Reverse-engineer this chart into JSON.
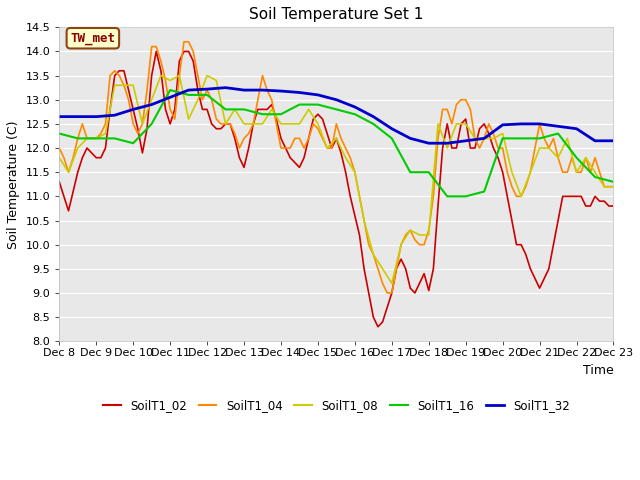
{
  "title": "Soil Temperature Set 1",
  "xlabel": "Time",
  "ylabel": "Soil Temperature (C)",
  "ylim": [
    8.0,
    14.5
  ],
  "xlim": [
    0,
    15
  ],
  "fig_bg": "#ffffff",
  "plot_bg": "#e8e8e8",
  "annotation_text": "TW_met",
  "annotation_bg": "#ffffcc",
  "annotation_border": "#8B4513",
  "annotation_text_color": "#8B0000",
  "xtick_labels": [
    "Dec 8",
    "Dec 9",
    "Dec 10",
    "Dec 11",
    "Dec 12",
    "Dec 13",
    "Dec 14",
    "Dec 15",
    "Dec 16",
    "Dec 17",
    "Dec 18",
    "Dec 19",
    "Dec 20",
    "Dec 21",
    "Dec 22",
    "Dec 23"
  ],
  "ytick_values": [
    8.0,
    8.5,
    9.0,
    9.5,
    10.0,
    10.5,
    11.0,
    11.5,
    12.0,
    12.5,
    13.0,
    13.5,
    14.0,
    14.5
  ],
  "grid_color": "#ffffff",
  "series": {
    "SoilT1_02": {
      "color": "#cc0000",
      "linewidth": 1.2,
      "x": [
        0,
        0.125,
        0.25,
        0.375,
        0.5,
        0.625,
        0.75,
        0.875,
        1.0,
        1.125,
        1.25,
        1.375,
        1.5,
        1.625,
        1.75,
        1.875,
        2.0,
        2.125,
        2.25,
        2.375,
        2.5,
        2.625,
        2.75,
        2.875,
        3.0,
        3.125,
        3.25,
        3.375,
        3.5,
        3.625,
        3.75,
        3.875,
        4.0,
        4.125,
        4.25,
        4.375,
        4.5,
        4.625,
        4.75,
        4.875,
        5.0,
        5.125,
        5.25,
        5.375,
        5.5,
        5.625,
        5.75,
        5.875,
        6.0,
        6.125,
        6.25,
        6.375,
        6.5,
        6.625,
        6.75,
        6.875,
        7.0,
        7.125,
        7.25,
        7.375,
        7.5,
        7.625,
        7.75,
        7.875,
        8.0,
        8.125,
        8.25,
        8.375,
        8.5,
        8.625,
        8.75,
        8.875,
        9.0,
        9.125,
        9.25,
        9.375,
        9.5,
        9.625,
        9.75,
        9.875,
        10.0,
        10.125,
        10.25,
        10.375,
        10.5,
        10.625,
        10.75,
        10.875,
        11.0,
        11.125,
        11.25,
        11.375,
        11.5,
        11.625,
        11.75,
        11.875,
        12.0,
        12.125,
        12.25,
        12.375,
        12.5,
        12.625,
        12.75,
        12.875,
        13.0,
        13.125,
        13.25,
        13.375,
        13.5,
        13.625,
        13.75,
        13.875,
        14.0,
        14.125,
        14.25,
        14.375,
        14.5,
        14.625,
        14.75,
        14.875,
        15.0
      ],
      "y": [
        11.3,
        11.0,
        10.7,
        11.1,
        11.5,
        11.8,
        12.0,
        11.9,
        11.8,
        11.8,
        12.0,
        12.8,
        13.5,
        13.6,
        13.6,
        13.2,
        12.8,
        12.4,
        11.9,
        12.4,
        13.5,
        14.0,
        13.6,
        12.8,
        12.5,
        12.8,
        13.8,
        14.0,
        14.0,
        13.8,
        13.2,
        12.8,
        12.8,
        12.5,
        12.4,
        12.4,
        12.5,
        12.5,
        12.2,
        11.8,
        11.6,
        12.0,
        12.5,
        12.8,
        12.8,
        12.8,
        12.9,
        12.6,
        12.2,
        12.0,
        11.8,
        11.7,
        11.6,
        11.8,
        12.2,
        12.6,
        12.7,
        12.6,
        12.3,
        12.0,
        12.2,
        11.9,
        11.5,
        11.0,
        10.6,
        10.2,
        9.5,
        9.0,
        8.5,
        8.3,
        8.4,
        8.7,
        9.0,
        9.5,
        9.7,
        9.5,
        9.1,
        9.0,
        9.2,
        9.4,
        9.05,
        9.5,
        10.8,
        12.0,
        12.5,
        12.0,
        12.0,
        12.5,
        12.6,
        12.0,
        12.0,
        12.4,
        12.5,
        12.3,
        12.0,
        11.8,
        11.5,
        11.0,
        10.5,
        10.0,
        10.0,
        9.8,
        9.5,
        9.3,
        9.1,
        9.3,
        9.5,
        10.0,
        10.5,
        11.0,
        11.0,
        11.0,
        11.0,
        11.0,
        10.8,
        10.8,
        11.0,
        10.9,
        10.9,
        10.8,
        10.8
      ]
    },
    "SoilT1_04": {
      "color": "#ff8800",
      "linewidth": 1.2,
      "x": [
        0,
        0.125,
        0.25,
        0.375,
        0.5,
        0.625,
        0.75,
        0.875,
        1.0,
        1.125,
        1.25,
        1.375,
        1.5,
        1.625,
        1.75,
        1.875,
        2.0,
        2.125,
        2.25,
        2.375,
        2.5,
        2.625,
        2.75,
        2.875,
        3.0,
        3.125,
        3.25,
        3.375,
        3.5,
        3.625,
        3.75,
        3.875,
        4.0,
        4.125,
        4.25,
        4.375,
        4.5,
        4.625,
        4.75,
        4.875,
        5.0,
        5.125,
        5.25,
        5.375,
        5.5,
        5.625,
        5.75,
        5.875,
        6.0,
        6.125,
        6.25,
        6.375,
        6.5,
        6.625,
        6.75,
        6.875,
        7.0,
        7.125,
        7.25,
        7.375,
        7.5,
        7.625,
        7.75,
        7.875,
        8.0,
        8.125,
        8.25,
        8.375,
        8.5,
        8.625,
        8.75,
        8.875,
        9.0,
        9.125,
        9.25,
        9.375,
        9.5,
        9.625,
        9.75,
        9.875,
        10.0,
        10.125,
        10.25,
        10.375,
        10.5,
        10.625,
        10.75,
        10.875,
        11.0,
        11.125,
        11.25,
        11.375,
        11.5,
        11.625,
        11.75,
        11.875,
        12.0,
        12.125,
        12.25,
        12.375,
        12.5,
        12.625,
        12.75,
        12.875,
        13.0,
        13.125,
        13.25,
        13.375,
        13.5,
        13.625,
        13.75,
        13.875,
        14.0,
        14.125,
        14.25,
        14.375,
        14.5,
        14.625,
        14.75,
        14.875,
        15.0
      ],
      "y": [
        12.0,
        11.8,
        11.5,
        11.8,
        12.2,
        12.5,
        12.2,
        12.2,
        12.2,
        12.3,
        12.5,
        13.5,
        13.6,
        13.5,
        13.3,
        13.0,
        12.5,
        12.3,
        12.5,
        13.2,
        14.1,
        14.1,
        13.8,
        13.4,
        12.8,
        12.6,
        13.5,
        14.2,
        14.2,
        14.0,
        13.5,
        13.0,
        13.2,
        13.0,
        12.6,
        12.5,
        12.5,
        12.5,
        12.3,
        12.0,
        12.2,
        12.3,
        12.5,
        13.0,
        13.5,
        13.2,
        13.0,
        12.5,
        12.0,
        12.0,
        12.0,
        12.2,
        12.2,
        12.0,
        12.2,
        12.5,
        12.4,
        12.2,
        12.0,
        12.0,
        12.5,
        12.2,
        12.0,
        11.8,
        11.5,
        11.0,
        10.5,
        10.0,
        9.8,
        9.5,
        9.2,
        9.0,
        9.0,
        9.5,
        10.0,
        10.2,
        10.3,
        10.1,
        10.0,
        10.0,
        10.3,
        11.0,
        12.2,
        12.8,
        12.8,
        12.5,
        12.9,
        13.0,
        13.0,
        12.8,
        12.2,
        12.0,
        12.2,
        12.5,
        12.3,
        12.0,
        12.0,
        11.5,
        11.2,
        11.0,
        11.0,
        11.2,
        11.5,
        12.0,
        12.5,
        12.2,
        12.0,
        12.2,
        11.8,
        11.5,
        11.5,
        11.8,
        11.5,
        11.5,
        11.8,
        11.5,
        11.8,
        11.5,
        11.2,
        11.2,
        11.2
      ]
    },
    "SoilT1_08": {
      "color": "#cccc00",
      "linewidth": 1.2,
      "x": [
        0,
        0.25,
        0.5,
        0.75,
        1.0,
        1.25,
        1.5,
        1.75,
        2.0,
        2.25,
        2.5,
        2.75,
        3.0,
        3.25,
        3.5,
        3.75,
        4.0,
        4.25,
        4.5,
        4.75,
        5.0,
        5.25,
        5.5,
        5.75,
        6.0,
        6.25,
        6.5,
        6.75,
        7.0,
        7.25,
        7.5,
        7.75,
        8.0,
        8.25,
        8.5,
        8.75,
        9.0,
        9.25,
        9.5,
        9.75,
        10.0,
        10.25,
        10.5,
        10.75,
        11.0,
        11.25,
        11.5,
        11.75,
        12.0,
        12.25,
        12.5,
        12.75,
        13.0,
        13.25,
        13.5,
        13.75,
        14.0,
        14.25,
        14.5,
        14.75,
        15.0
      ],
      "y": [
        11.8,
        11.5,
        12.0,
        12.2,
        12.2,
        12.3,
        13.3,
        13.3,
        13.3,
        12.5,
        13.0,
        13.5,
        13.4,
        13.5,
        12.6,
        13.0,
        13.5,
        13.4,
        12.5,
        12.8,
        12.5,
        12.5,
        12.5,
        12.8,
        12.5,
        12.5,
        12.5,
        12.8,
        12.5,
        12.0,
        12.2,
        11.8,
        11.5,
        10.5,
        9.8,
        9.5,
        9.2,
        10.0,
        10.3,
        10.2,
        10.2,
        12.5,
        12.0,
        12.5,
        12.5,
        12.2,
        12.2,
        12.2,
        12.3,
        11.5,
        11.0,
        11.5,
        12.0,
        12.0,
        11.8,
        12.2,
        11.5,
        11.8,
        11.5,
        11.2,
        11.2
      ]
    },
    "SoilT1_16": {
      "color": "#00cc00",
      "linewidth": 1.5,
      "x": [
        0,
        0.5,
        1.0,
        1.5,
        2.0,
        2.5,
        3.0,
        3.5,
        4.0,
        4.5,
        5.0,
        5.5,
        6.0,
        6.5,
        7.0,
        7.5,
        8.0,
        8.5,
        9.0,
        9.5,
        10.0,
        10.5,
        11.0,
        11.5,
        12.0,
        12.5,
        13.0,
        13.5,
        14.0,
        14.5,
        15.0
      ],
      "y": [
        12.3,
        12.2,
        12.2,
        12.2,
        12.1,
        12.5,
        13.2,
        13.1,
        13.1,
        12.8,
        12.8,
        12.7,
        12.7,
        12.9,
        12.9,
        12.8,
        12.7,
        12.5,
        12.2,
        11.5,
        11.5,
        11.0,
        11.0,
        11.1,
        12.2,
        12.2,
        12.2,
        12.3,
        11.8,
        11.4,
        11.3
      ]
    },
    "SoilT1_32": {
      "color": "#0000cc",
      "linewidth": 2.0,
      "x": [
        0,
        0.5,
        1.0,
        1.5,
        2.0,
        2.5,
        3.0,
        3.5,
        4.0,
        4.5,
        5.0,
        5.5,
        6.0,
        6.5,
        7.0,
        7.5,
        8.0,
        8.5,
        9.0,
        9.5,
        10.0,
        10.5,
        11.0,
        11.5,
        12.0,
        12.5,
        13.0,
        13.5,
        14.0,
        14.5,
        15.0
      ],
      "y": [
        12.65,
        12.65,
        12.65,
        12.68,
        12.8,
        12.9,
        13.05,
        13.2,
        13.22,
        13.25,
        13.2,
        13.2,
        13.18,
        13.15,
        13.1,
        13.0,
        12.85,
        12.65,
        12.4,
        12.2,
        12.1,
        12.1,
        12.15,
        12.2,
        12.48,
        12.5,
        12.5,
        12.45,
        12.4,
        12.15,
        12.15
      ]
    }
  }
}
